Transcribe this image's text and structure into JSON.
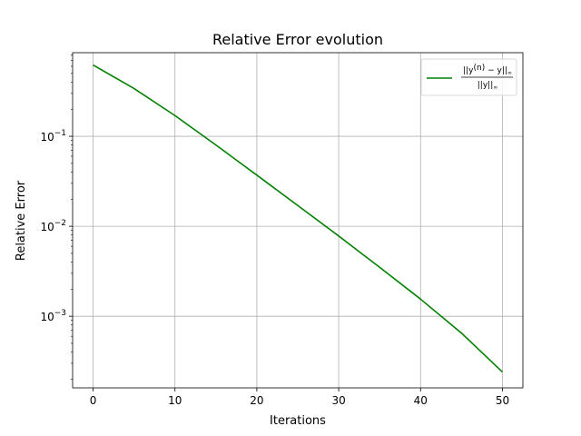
{
  "chart_data": {
    "type": "line",
    "title": "Relative Error evolution",
    "xlabel": "Iterations",
    "ylabel": "Relative Error",
    "xlim": [
      -2.5,
      52.5
    ],
    "ylim": [
      0.00016,
      0.85
    ],
    "yscale": "log",
    "grid": true,
    "legend_position": "top-right",
    "x_ticks": [
      0,
      10,
      20,
      30,
      40,
      50
    ],
    "x_tick_labels": [
      "0",
      "10",
      "20",
      "30",
      "40",
      "50"
    ],
    "y_ticks": [
      {
        "value": 0.1,
        "base": "10",
        "exp": "−1"
      },
      {
        "value": 0.01,
        "base": "10",
        "exp": "−2"
      },
      {
        "value": 0.001,
        "base": "10",
        "exp": "−3"
      }
    ],
    "series": [
      {
        "name": "||y^(n) − y||∞ / ||y||∞",
        "legend_numerator": "||y",
        "legend_numerator_sup": "(n)",
        "legend_numerator_rest": " − y||",
        "legend_denominator": "||y||",
        "legend_sub": "∞",
        "color": "#008000",
        "x": [
          0,
          5,
          10,
          15,
          20,
          25,
          30,
          35,
          40,
          45,
          50
        ],
        "y": [
          0.62,
          0.34,
          0.17,
          0.08,
          0.037,
          0.017,
          0.0078,
          0.0035,
          0.00155,
          0.00065,
          0.00024
        ]
      }
    ]
  }
}
